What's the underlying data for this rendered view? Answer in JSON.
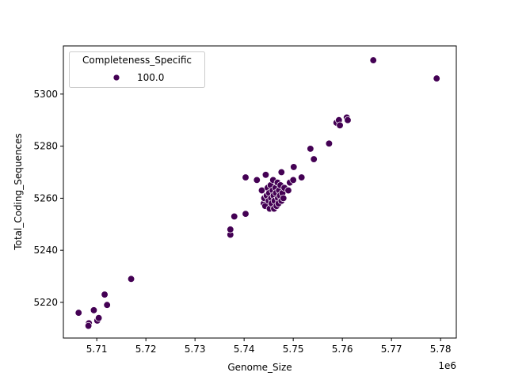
{
  "chart_data": {
    "type": "scatter",
    "title": "",
    "xlabel": "Genome_Size",
    "ylabel": "Total_Coding_Sequences",
    "x_offset_label": "1e6",
    "xlim": [
      5.7032,
      5.7832
    ],
    "ylim": [
      5206.3,
      5318.5
    ],
    "x_ticks": [
      5.71,
      5.72,
      5.73,
      5.74,
      5.75,
      5.76,
      5.77,
      5.78
    ],
    "x_tick_labels": [
      "5.71",
      "5.72",
      "5.73",
      "5.74",
      "5.75",
      "5.76",
      "5.77",
      "5.78"
    ],
    "y_ticks": [
      5220,
      5240,
      5260,
      5280,
      5300
    ],
    "y_tick_labels": [
      "5220",
      "5240",
      "5260",
      "5280",
      "5300"
    ],
    "grid": false,
    "legend": {
      "title": "Completeness_Specific",
      "position": "upper left",
      "entries": [
        {
          "label": "100.0",
          "color": "#440154"
        }
      ]
    },
    "marker_color": "#440154",
    "series": [
      {
        "name": "100.0",
        "points": [
          {
            "x": 5.7063,
            "y": 5216
          },
          {
            "x": 5.7084,
            "y": 5212
          },
          {
            "x": 5.7083,
            "y": 5211
          },
          {
            "x": 5.7094,
            "y": 5217
          },
          {
            "x": 5.7101,
            "y": 5213
          },
          {
            "x": 5.7104,
            "y": 5214
          },
          {
            "x": 5.7116,
            "y": 5223
          },
          {
            "x": 5.7121,
            "y": 5219
          },
          {
            "x": 5.717,
            "y": 5229
          },
          {
            "x": 5.7372,
            "y": 5246
          },
          {
            "x": 5.7372,
            "y": 5248
          },
          {
            "x": 5.738,
            "y": 5253
          },
          {
            "x": 5.7403,
            "y": 5254
          },
          {
            "x": 5.7403,
            "y": 5268
          },
          {
            "x": 5.7426,
            "y": 5267
          },
          {
            "x": 5.7444,
            "y": 5269
          },
          {
            "x": 5.7436,
            "y": 5263
          },
          {
            "x": 5.744,
            "y": 5258
          },
          {
            "x": 5.7441,
            "y": 5260
          },
          {
            "x": 5.7443,
            "y": 5257
          },
          {
            "x": 5.7446,
            "y": 5261
          },
          {
            "x": 5.7448,
            "y": 5264
          },
          {
            "x": 5.745,
            "y": 5259
          },
          {
            "x": 5.7451,
            "y": 5262
          },
          {
            "x": 5.7452,
            "y": 5256
          },
          {
            "x": 5.7454,
            "y": 5265
          },
          {
            "x": 5.7455,
            "y": 5260
          },
          {
            "x": 5.7456,
            "y": 5258
          },
          {
            "x": 5.7458,
            "y": 5263
          },
          {
            "x": 5.7459,
            "y": 5267
          },
          {
            "x": 5.746,
            "y": 5261
          },
          {
            "x": 5.7461,
            "y": 5256
          },
          {
            "x": 5.7462,
            "y": 5259
          },
          {
            "x": 5.7464,
            "y": 5264
          },
          {
            "x": 5.7465,
            "y": 5262
          },
          {
            "x": 5.7466,
            "y": 5257
          },
          {
            "x": 5.7468,
            "y": 5266
          },
          {
            "x": 5.7469,
            "y": 5260
          },
          {
            "x": 5.747,
            "y": 5258
          },
          {
            "x": 5.7471,
            "y": 5263
          },
          {
            "x": 5.7473,
            "y": 5261
          },
          {
            "x": 5.7474,
            "y": 5265
          },
          {
            "x": 5.7476,
            "y": 5259
          },
          {
            "x": 5.7478,
            "y": 5262
          },
          {
            "x": 5.748,
            "y": 5260
          },
          {
            "x": 5.7482,
            "y": 5264
          },
          {
            "x": 5.7476,
            "y": 5270
          },
          {
            "x": 5.749,
            "y": 5263
          },
          {
            "x": 5.7493,
            "y": 5266
          },
          {
            "x": 5.75,
            "y": 5267
          },
          {
            "x": 5.7501,
            "y": 5272
          },
          {
            "x": 5.7517,
            "y": 5268
          },
          {
            "x": 5.7535,
            "y": 5279
          },
          {
            "x": 5.7542,
            "y": 5275
          },
          {
            "x": 5.7573,
            "y": 5281
          },
          {
            "x": 5.7588,
            "y": 5289
          },
          {
            "x": 5.7593,
            "y": 5290
          },
          {
            "x": 5.7595,
            "y": 5288
          },
          {
            "x": 5.7609,
            "y": 5291
          },
          {
            "x": 5.7611,
            "y": 5290
          },
          {
            "x": 5.7663,
            "y": 5313
          },
          {
            "x": 5.7792,
            "y": 5306
          }
        ]
      }
    ]
  }
}
